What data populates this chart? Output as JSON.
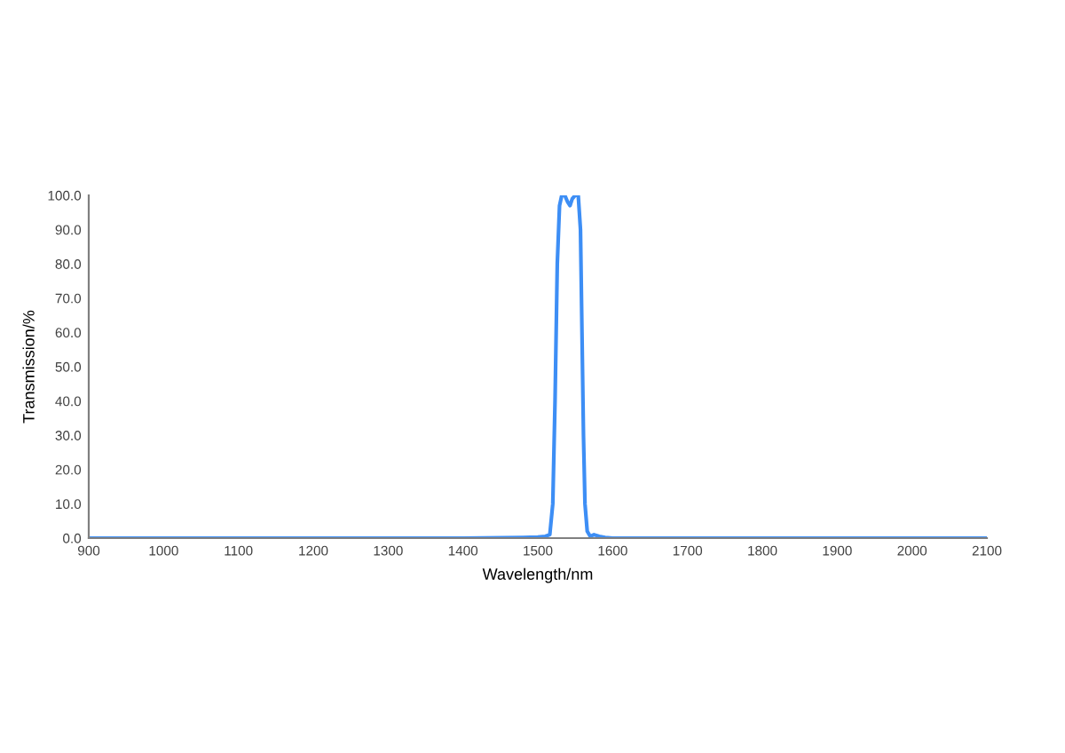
{
  "chart_data": {
    "type": "line",
    "xlabel": "Wavelength/nm",
    "ylabel": "Transmission/%",
    "series": [
      {
        "color": "#3d8ef5",
        "x": [
          900,
          1000,
          1200,
          1400,
          1480,
          1500,
          1510,
          1516,
          1520,
          1523,
          1526,
          1529,
          1532,
          1536,
          1540,
          1543,
          1546,
          1550,
          1554,
          1557,
          1559,
          1561,
          1563,
          1566,
          1570,
          1575,
          1582,
          1590,
          1600,
          1700,
          1900,
          2100
        ],
        "values": [
          0,
          0,
          0,
          0,
          0.2,
          0.3,
          0.5,
          1,
          10,
          40,
          80,
          97,
          100,
          100,
          98,
          97,
          99,
          100,
          100,
          90,
          60,
          30,
          10,
          2,
          0.5,
          1,
          0.5,
          0.2,
          0,
          0,
          0,
          0
        ]
      }
    ],
    "xlim": [
      900,
      2100
    ],
    "xticks": [
      900,
      1000,
      1100,
      1200,
      1300,
      1400,
      1500,
      1600,
      1700,
      1800,
      1900,
      2000,
      2100
    ],
    "ylim": [
      0,
      100
    ],
    "yticks": [
      {
        "value": 0,
        "label": "0.0"
      },
      {
        "value": 10,
        "label": "10.0"
      },
      {
        "value": 20,
        "label": "20.0"
      },
      {
        "value": 30,
        "label": "30.0"
      },
      {
        "value": 40,
        "label": "40.0"
      },
      {
        "value": 50,
        "label": "50.0"
      },
      {
        "value": 60,
        "label": "60.0"
      },
      {
        "value": 70,
        "label": "70.0"
      },
      {
        "value": 80,
        "label": "80.0"
      },
      {
        "value": 90,
        "label": "90.0"
      },
      {
        "value": 100,
        "label": "100.0"
      }
    ],
    "grid": false,
    "legend": false
  }
}
